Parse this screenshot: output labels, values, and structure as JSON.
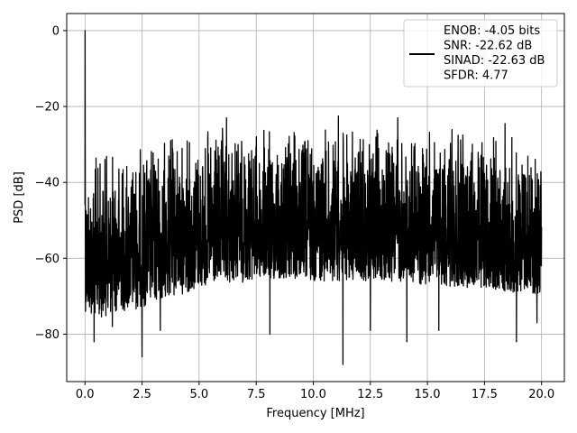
{
  "chart_data": {
    "type": "line",
    "title": "",
    "xlabel": "Frequency [MHz]",
    "ylabel": "PSD [dB]",
    "xlim": [
      -0.8,
      21.0
    ],
    "ylim": [
      -92.5,
      4.5
    ],
    "grid": true,
    "legend_position": "top-right",
    "x_ticks": [
      0.0,
      2.5,
      5.0,
      7.5,
      10.0,
      12.5,
      15.0,
      17.5,
      20.0
    ],
    "x_tick_labels": [
      "0.0",
      "2.5",
      "5.0",
      "7.5",
      "10.0",
      "12.5",
      "15.0",
      "17.5",
      "20.0"
    ],
    "y_ticks": [
      0,
      -20,
      -40,
      -60,
      -80
    ],
    "y_tick_labels": [
      "0",
      "−20",
      "−40",
      "−60",
      "−80"
    ],
    "series": [
      {
        "name": "ENOB: -4.05 bits",
        "color": "#000000",
        "envelope": {
          "x": [
            0.0,
            0.5,
            1.0,
            1.5,
            2.0,
            2.5,
            3.0,
            4.0,
            5.0,
            6.0,
            7.5,
            10.0,
            12.5,
            15.0,
            17.5,
            20.0
          ],
          "upper": [
            -31,
            -31,
            -30.5,
            -30,
            -30,
            -29,
            -27.5,
            -26,
            -25.5,
            -25,
            -25,
            -25,
            -25,
            -25.5,
            -26,
            -27
          ],
          "lower": [
            -74,
            -76,
            -75,
            -74,
            -74,
            -73,
            -72,
            -70,
            -68,
            -67,
            -66,
            -66,
            -66,
            -67,
            -68,
            -70
          ]
        },
        "peaks": [
          {
            "x": 0.0,
            "y": 0.0
          },
          {
            "x": 0.4,
            "y": -82
          },
          {
            "x": 1.2,
            "y": -78
          },
          {
            "x": 2.5,
            "y": -86
          },
          {
            "x": 3.3,
            "y": -79
          },
          {
            "x": 8.1,
            "y": -80
          },
          {
            "x": 11.3,
            "y": -88
          },
          {
            "x": 12.5,
            "y": -79
          },
          {
            "x": 14.1,
            "y": -82
          },
          {
            "x": 15.5,
            "y": -79
          },
          {
            "x": 18.9,
            "y": -82
          },
          {
            "x": 19.8,
            "y": -77
          },
          {
            "x": 6.2,
            "y": -23
          },
          {
            "x": 11.1,
            "y": -22.5
          },
          {
            "x": 13.7,
            "y": -23
          },
          {
            "x": 18.4,
            "y": -24.5
          }
        ]
      }
    ],
    "legend_lines": [
      "ENOB: -4.05 bits",
      "SNR: -22.62 dB",
      "SINAD: -22.63 dB",
      "SFDR: 4.77"
    ]
  }
}
